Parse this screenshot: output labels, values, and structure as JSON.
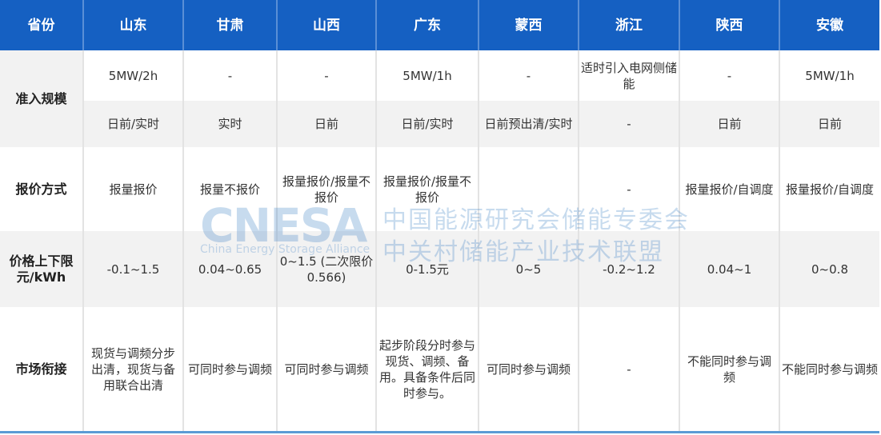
{
  "header": [
    "省份",
    "山东",
    "甘肃",
    "山西",
    "广东",
    "蒙西",
    "浙江",
    "陕西",
    "安徽"
  ],
  "rows": {
    "access_label": "准入规模",
    "access_scale": [
      "5MW/2h",
      "-",
      "-",
      "5MW/1h",
      "-",
      "适时引入电网侧储能",
      "-",
      "5MW/1h"
    ],
    "access_market": [
      "日前/实时",
      "实时",
      "日前",
      "日前/实时",
      "日前预出清/实时",
      "-",
      "日前",
      "日前"
    ],
    "quote_label": "报价方式",
    "quote": [
      "报量报价",
      "报量不报价",
      "报量报价/报量不报价",
      "报量报价/报量不报价",
      "",
      "-",
      "报量报价/自调度",
      "报量报价/自调度"
    ],
    "price_label": "价格上下限元/kWh",
    "price": [
      "-0.1~1.5",
      "0.04~0.65",
      "0~1.5 (二次限价0.566)",
      "0-1.5元",
      "0~5",
      "-0.2~1.2",
      "0.04~1",
      "0~0.8"
    ],
    "link_label": "市场衔接",
    "link": [
      "现货与调频分步出清，现货与备用联合出清",
      "可同时参与调频",
      "可同时参与调频",
      "起步阶段分时参与现货、调频、备用。具备条件后同时参与。",
      "可同时参与调频",
      "-",
      "不能同时参与调频",
      "不能同时参与调频"
    ]
  },
  "watermark": {
    "logo": "CNESA",
    "sub": "China Energy Storage Alliance",
    "cn_line1": "中国能源研究会储能专委会",
    "cn_line2": "中关村储能产业技术联盟"
  },
  "colors": {
    "header_bg": "#1560c2",
    "stripe": "#f2f2f2",
    "bottom_border": "#5b9bd5"
  }
}
